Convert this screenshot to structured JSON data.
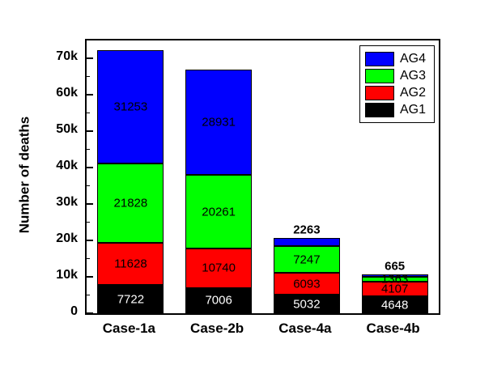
{
  "chart_data": {
    "type": "bar",
    "variant": "stacked",
    "title": "",
    "xlabel": "",
    "ylabel": "Number of deaths",
    "ylim": [
      0,
      75000
    ],
    "yticks": [
      0,
      10000,
      20000,
      30000,
      40000,
      50000,
      60000,
      70000
    ],
    "ytick_labels": [
      "0",
      "10k",
      "20k",
      "30k",
      "40k",
      "50k",
      "60k",
      "70k"
    ],
    "grid": false,
    "categories": [
      "Case-1a",
      "Case-2b",
      "Case-4a",
      "Case-4b"
    ],
    "series": [
      {
        "name": "AG1",
        "color": "#000000",
        "label_color": "#ffffff",
        "values": [
          7722,
          7006,
          5032,
          4648
        ]
      },
      {
        "name": "AG2",
        "color": "#ff0000",
        "label_color": "#000000",
        "values": [
          11628,
          10740,
          6093,
          4107
        ]
      },
      {
        "name": "AG3",
        "color": "#00ff00",
        "label_color": "#000000",
        "values": [
          21828,
          20261,
          7247,
          1363
        ]
      },
      {
        "name": "AG4",
        "color": "#0000ff",
        "label_color": "#000000",
        "values": [
          31253,
          28931,
          2263,
          665
        ]
      }
    ],
    "legend": {
      "position": "top-right",
      "order": [
        "AG4",
        "AG3",
        "AG2",
        "AG1"
      ]
    }
  }
}
